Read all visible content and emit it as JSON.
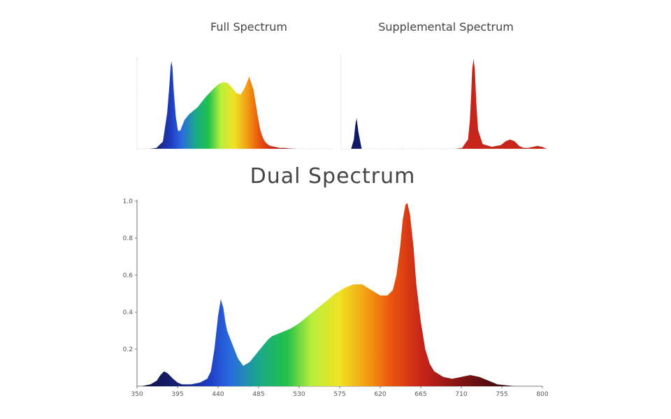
{
  "chart_data": [
    {
      "type": "area",
      "title": "Full Spectrum",
      "xlim": [
        350,
        800
      ],
      "ylim": [
        0,
        1.0
      ],
      "x": [
        350,
        380,
        395,
        410,
        420,
        425,
        428,
        430,
        432,
        435,
        440,
        445,
        450,
        455,
        460,
        470,
        480,
        490,
        500,
        510,
        520,
        530,
        540,
        550,
        560,
        570,
        580,
        590,
        600,
        610,
        620,
        630,
        635,
        640,
        645,
        650,
        655,
        660,
        670,
        680,
        690,
        700,
        720,
        750,
        800
      ],
      "y": [
        0,
        0,
        0.01,
        0.08,
        0.4,
        0.7,
        0.92,
        0.97,
        0.9,
        0.65,
        0.35,
        0.2,
        0.2,
        0.26,
        0.32,
        0.38,
        0.42,
        0.46,
        0.52,
        0.58,
        0.63,
        0.68,
        0.72,
        0.74,
        0.73,
        0.68,
        0.62,
        0.6,
        0.68,
        0.8,
        0.65,
        0.35,
        0.22,
        0.14,
        0.09,
        0.06,
        0.04,
        0.03,
        0.02,
        0.01,
        0.01,
        0.005,
        0,
        0,
        0
      ]
    },
    {
      "type": "area",
      "title": "Supplemental Spectrum",
      "xlim": [
        350,
        800
      ],
      "ylim": [
        0,
        1.0
      ],
      "x": [
        350,
        372,
        378,
        381,
        384,
        388,
        395,
        560,
        600,
        615,
        628,
        632,
        635,
        637,
        640,
        643,
        646,
        650,
        660,
        680,
        700,
        710,
        720,
        730,
        740,
        750,
        760,
        770,
        780,
        790,
        800
      ],
      "y": [
        0,
        0,
        0.1,
        0.25,
        0.33,
        0.18,
        0,
        0,
        0,
        0.01,
        0.1,
        0.3,
        0.6,
        0.85,
        0.97,
        0.85,
        0.5,
        0.2,
        0.05,
        0.02,
        0.04,
        0.08,
        0.1,
        0.08,
        0.03,
        0.01,
        0.01,
        0.02,
        0.03,
        0.02,
        0
      ],
      "colors": [
        "#101a63",
        "#c8251a"
      ]
    },
    {
      "type": "area",
      "title": "Dual Spectrum",
      "xlim": [
        350,
        800
      ],
      "ylim": [
        0,
        1.0
      ],
      "yticks": [
        "0.2",
        "0.4",
        "0.6",
        "0.8",
        "1.0"
      ],
      "xticks": [
        "350",
        "395",
        "440",
        "485",
        "530",
        "575",
        "620",
        "665",
        "710",
        "755",
        "800"
      ],
      "x": [
        350,
        355,
        365,
        372,
        376,
        380,
        384,
        390,
        395,
        400,
        410,
        420,
        428,
        432,
        436,
        440,
        443,
        446,
        448,
        450,
        454,
        458,
        462,
        468,
        475,
        480,
        485,
        490,
        495,
        500,
        505,
        510,
        520,
        530,
        540,
        550,
        560,
        570,
        580,
        590,
        600,
        610,
        620,
        628,
        634,
        638,
        642,
        645,
        648,
        650,
        653,
        657,
        660,
        665,
        670,
        675,
        680,
        690,
        700,
        710,
        720,
        730,
        740,
        750,
        760,
        770,
        780,
        790,
        800
      ],
      "y": [
        0,
        0,
        0.01,
        0.03,
        0.06,
        0.08,
        0.07,
        0.04,
        0.02,
        0.01,
        0.01,
        0.02,
        0.04,
        0.08,
        0.2,
        0.38,
        0.47,
        0.42,
        0.35,
        0.3,
        0.25,
        0.2,
        0.15,
        0.11,
        0.13,
        0.16,
        0.19,
        0.22,
        0.25,
        0.27,
        0.28,
        0.29,
        0.31,
        0.34,
        0.38,
        0.42,
        0.46,
        0.5,
        0.53,
        0.55,
        0.55,
        0.52,
        0.49,
        0.49,
        0.52,
        0.6,
        0.75,
        0.9,
        0.98,
        0.99,
        0.93,
        0.75,
        0.55,
        0.35,
        0.2,
        0.12,
        0.08,
        0.05,
        0.04,
        0.05,
        0.06,
        0.05,
        0.03,
        0.01,
        0.005,
        0,
        0,
        0,
        0
      ]
    }
  ]
}
